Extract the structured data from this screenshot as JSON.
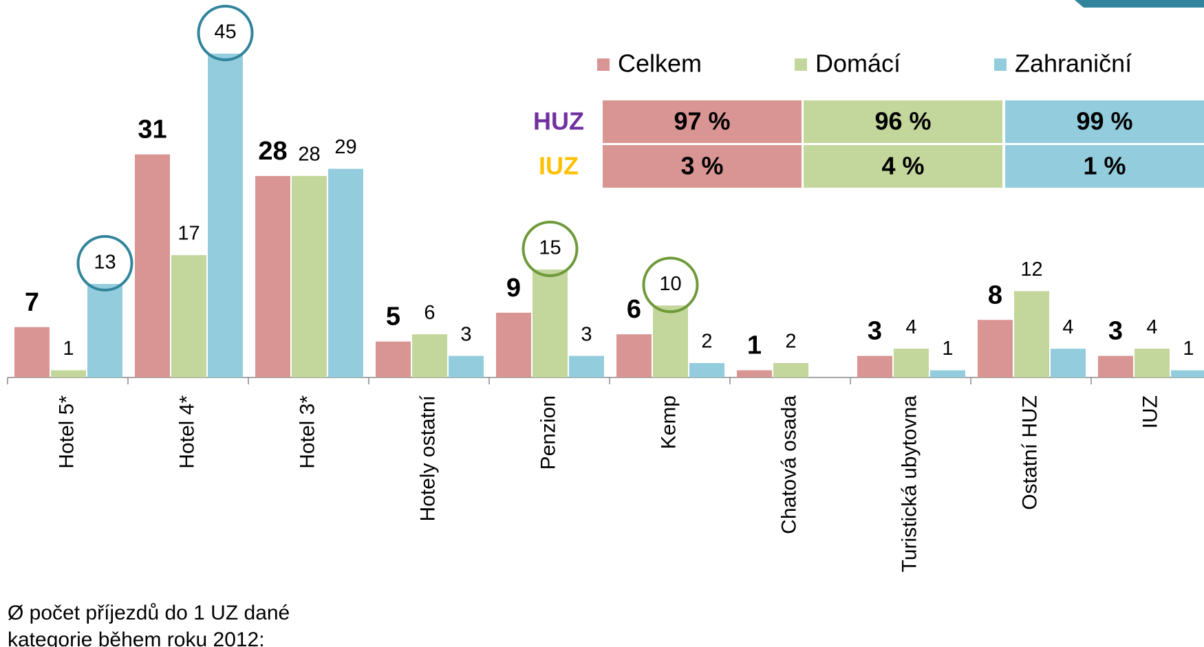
{
  "chart_data": {
    "type": "bar",
    "categories": [
      "Hotel 5*",
      "Hotel 4*",
      "Hotel 3*",
      "Hotely ostatní",
      "Penzion",
      "Kemp",
      "Chatová osada",
      "Turistická ubytovna",
      "Ostatní HUZ",
      "IUZ"
    ],
    "series": [
      {
        "name": "Celkem",
        "color": "#d99594",
        "values": [
          7,
          31,
          28,
          5,
          9,
          6,
          1,
          3,
          8,
          3
        ]
      },
      {
        "name": "Domácí",
        "color": "#c3d69b",
        "values": [
          1,
          17,
          28,
          6,
          15,
          10,
          2,
          4,
          12,
          4
        ],
        "circled": [
          4,
          5
        ],
        "circle_color": "#6f9a3a"
      },
      {
        "name": "Zahraniční",
        "color": "#93cddd",
        "values": [
          13,
          45,
          29,
          3,
          3,
          2,
          null,
          1,
          4,
          1
        ],
        "circled": [
          0,
          1
        ],
        "circle_color": "#31849b"
      }
    ],
    "ylim": [
      0,
      45
    ],
    "table": {
      "rows": [
        {
          "label": "HUZ",
          "color": "#7030a0",
          "cells": [
            "97 %",
            "96 %",
            "99 %"
          ]
        },
        {
          "label": "IUZ",
          "color": "#ffc000",
          "cells": [
            "3 %",
            "4 %",
            "1 %"
          ]
        }
      ]
    },
    "note": [
      "Ø počet příjezdů do 1 UZ dané",
      "kategorie během roku 2012:"
    ]
  }
}
